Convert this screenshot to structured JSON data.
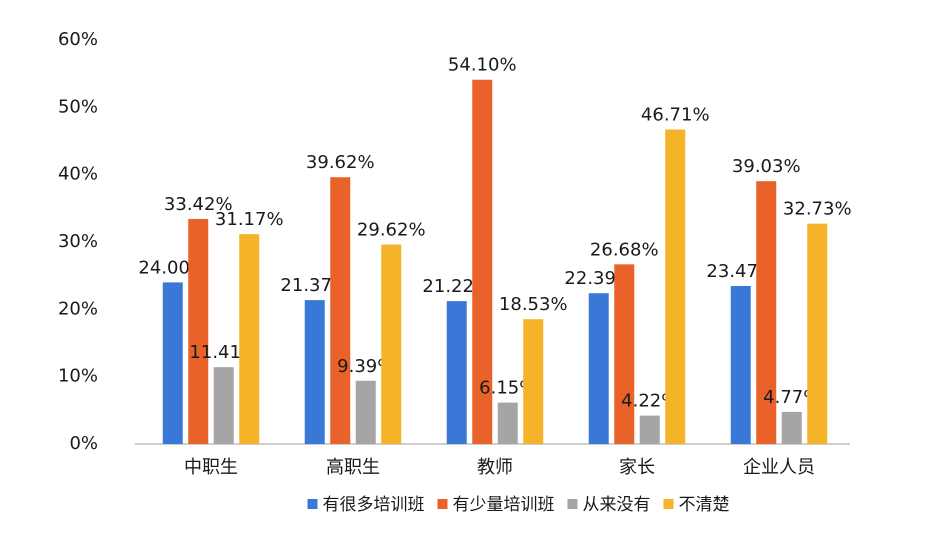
{
  "chart_data": {
    "type": "bar",
    "categories": [
      "中职生",
      "高职生",
      "教师",
      "家长",
      "企业人员"
    ],
    "series": [
      {
        "name": "有很多培训班",
        "color": "#3a78d8",
        "values": [
          24.0,
          21.37,
          21.22,
          22.39,
          23.47
        ],
        "value_labels": [
          "24.00%",
          "21.37%",
          "21.22%",
          "22.39%",
          "23.47%"
        ]
      },
      {
        "name": "有少量培训班",
        "color": "#e8622a",
        "values": [
          33.42,
          39.62,
          54.1,
          26.68,
          39.03
        ],
        "value_labels": [
          "33.42%",
          "39.62%",
          "54.10%",
          "26.68%",
          "39.03%"
        ]
      },
      {
        "name": "从来没有",
        "color": "#a5a5a5",
        "values": [
          11.41,
          9.39,
          6.15,
          4.22,
          4.77
        ],
        "value_labels": [
          "11.41%",
          "9.39%",
          "6.15%",
          "4.22%",
          "4.77%"
        ]
      },
      {
        "name": "不清楚",
        "color": "#f5b32a",
        "values": [
          31.17,
          29.62,
          18.53,
          46.71,
          32.73
        ],
        "value_labels": [
          "31.17%",
          "29.62%",
          "18.53%",
          "46.71%",
          "32.73%"
        ]
      }
    ],
    "ylim": [
      0,
      60
    ],
    "yticks": [
      {
        "value": 0,
        "label": "0%"
      },
      {
        "value": 10,
        "label": "10%"
      },
      {
        "value": 20,
        "label": "20%"
      },
      {
        "value": 30,
        "label": "30%"
      },
      {
        "value": 40,
        "label": "40%"
      },
      {
        "value": 50,
        "label": "50%"
      },
      {
        "value": 60,
        "label": "60%"
      }
    ],
    "grid": false,
    "legend": "bottom"
  }
}
